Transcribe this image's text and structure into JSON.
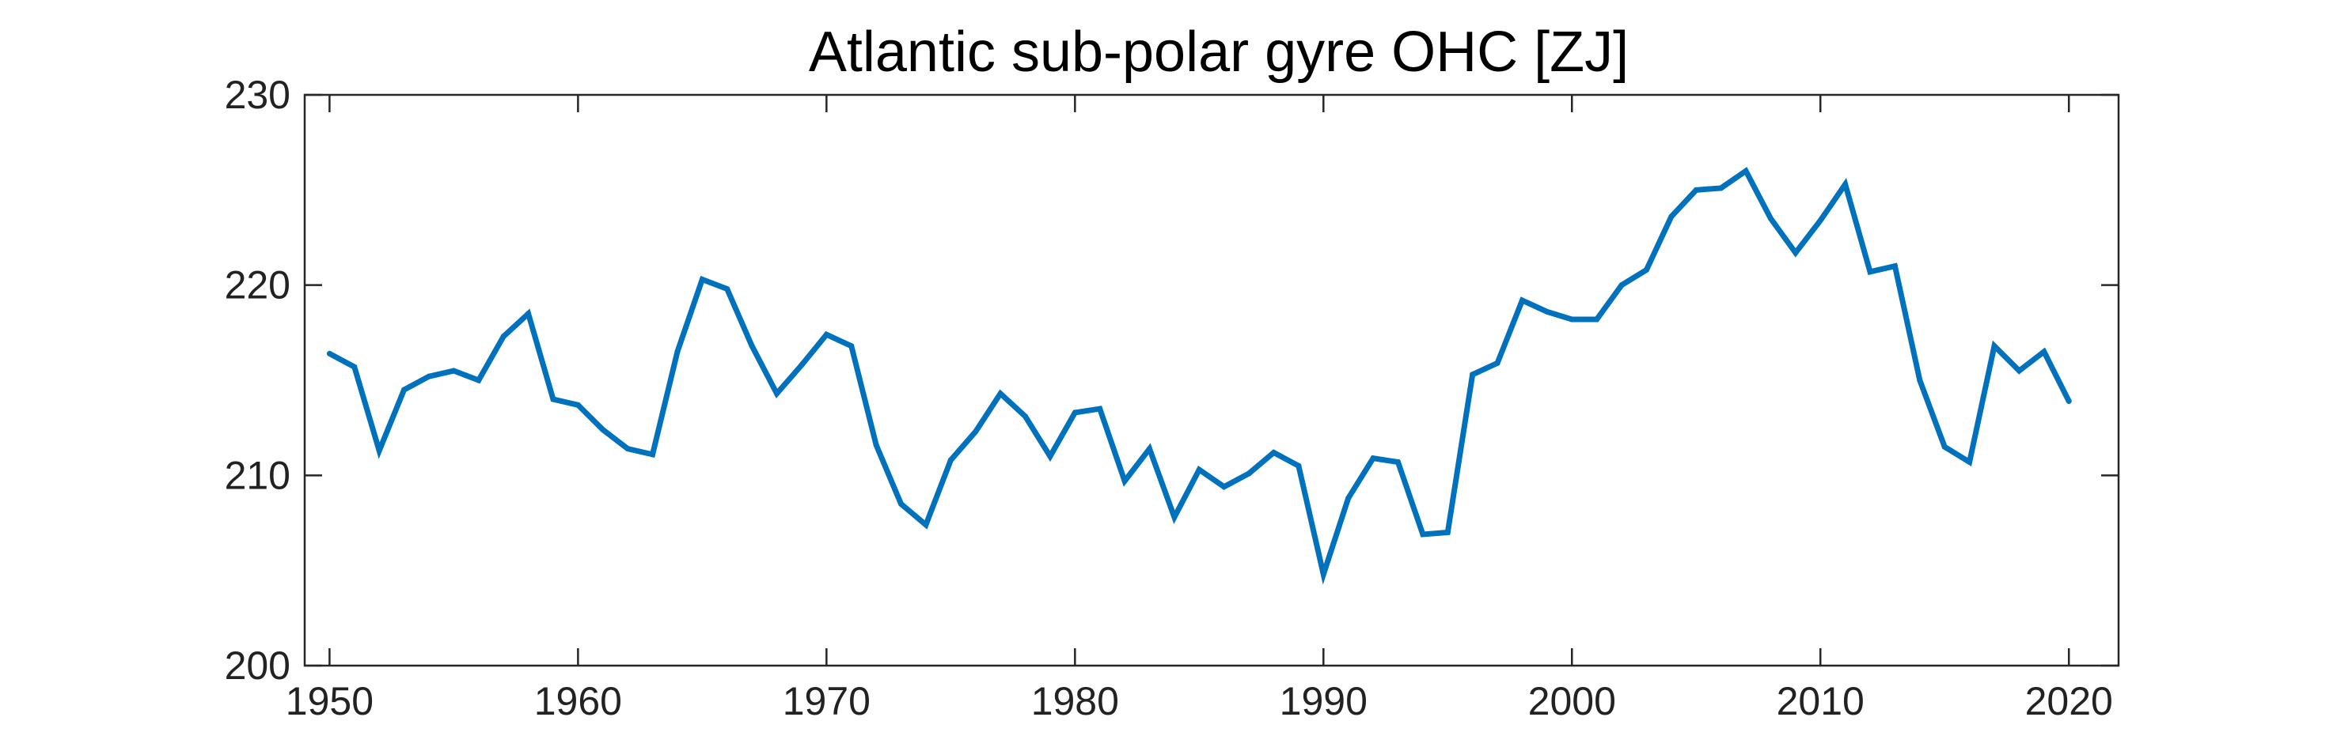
{
  "chart_data": {
    "type": "line",
    "title": "Atlantic sub-polar gyre OHC [ZJ]",
    "xlabel": "",
    "ylabel": "",
    "xlim": [
      1949,
      2022
    ],
    "ylim": [
      200,
      230
    ],
    "xticks": [
      1950,
      1960,
      1970,
      1980,
      1990,
      2000,
      2010,
      2020
    ],
    "yticks": [
      200,
      210,
      220,
      230
    ],
    "grid": false,
    "line_color": "#0072BD",
    "series": [
      {
        "x": [
          1950,
          1951,
          1952,
          1953,
          1954,
          1955,
          1956,
          1957,
          1958,
          1959,
          1960,
          1961,
          1962,
          1963,
          1964,
          1965,
          1966,
          1967,
          1968,
          1969,
          1970,
          1971,
          1972,
          1973,
          1974,
          1975,
          1976,
          1977,
          1978,
          1979,
          1980,
          1981,
          1982,
          1983,
          1984,
          1985,
          1986,
          1987,
          1988,
          1989,
          1990,
          1991,
          1992,
          1993,
          1994,
          1995,
          1996,
          1997,
          1998,
          1999,
          2000,
          2001,
          2002,
          2003,
          2004,
          2005,
          2006,
          2007,
          2008,
          2009,
          2010,
          2011,
          2012,
          2013,
          2014,
          2015,
          2016,
          2017,
          2018,
          2019,
          2020
        ],
        "values": [
          216.4,
          215.7,
          211.3,
          214.5,
          215.2,
          215.5,
          215.0,
          217.3,
          218.5,
          214.0,
          213.7,
          212.4,
          211.4,
          211.1,
          216.5,
          220.3,
          219.8,
          216.8,
          214.3,
          215.8,
          217.4,
          216.8,
          211.6,
          208.5,
          207.4,
          210.8,
          212.3,
          214.3,
          213.1,
          211.0,
          213.3,
          213.5,
          209.7,
          211.4,
          207.8,
          210.3,
          209.4,
          210.1,
          211.2,
          210.5,
          204.8,
          208.8,
          210.9,
          210.7,
          206.9,
          207.0,
          215.3,
          215.9,
          219.2,
          218.6,
          218.2,
          218.2,
          220.0,
          220.8,
          223.6,
          225.0,
          225.1,
          226.0,
          223.5,
          221.7,
          223.4,
          225.3,
          220.7,
          221.0,
          215.0,
          211.5,
          210.7,
          216.8,
          215.5,
          216.5,
          213.9
        ]
      }
    ]
  }
}
